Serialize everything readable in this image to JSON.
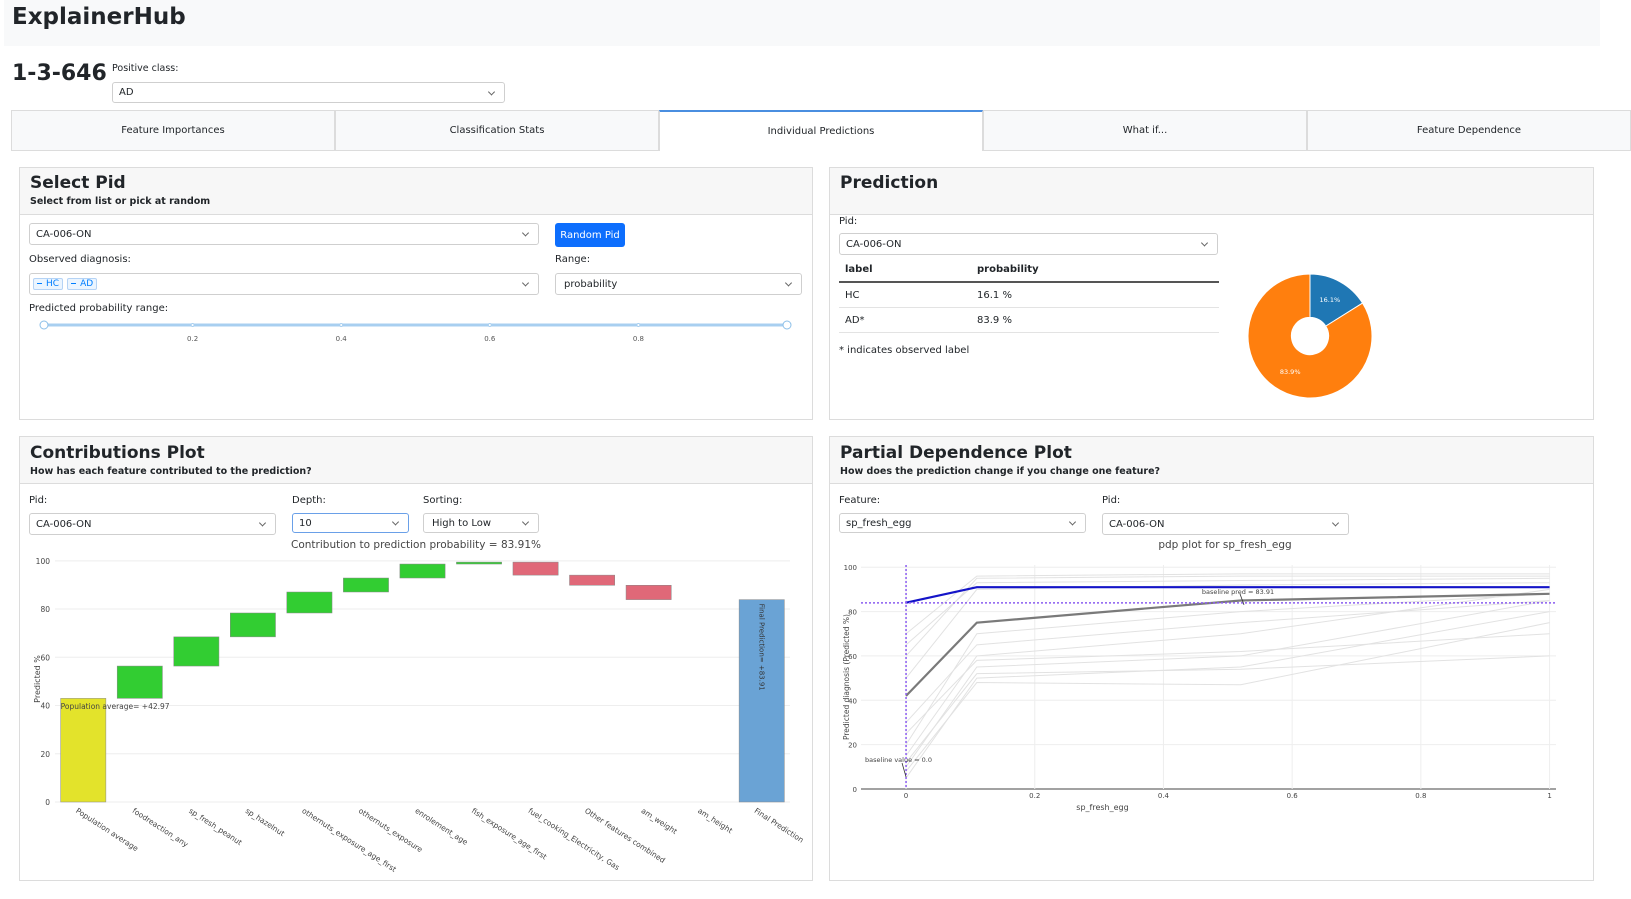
{
  "header": {
    "title": "ExplainerHub"
  },
  "page": {
    "title": "1-3-646",
    "positive_class_label": "Positive class:",
    "positive_class": "AD"
  },
  "tabs": {
    "items": [
      "Feature Importances",
      "Classification Stats",
      "Individual Predictions",
      "What if...",
      "Feature Dependence"
    ],
    "active": 2
  },
  "select_pid": {
    "title": "Select Pid",
    "subtitle": "Select from list or pick at random",
    "pid": "CA-006-ON",
    "button": "Random Pid",
    "observed_label": "Observed diagnosis:",
    "observed_tags": [
      "HC",
      "AD"
    ],
    "range_label": "Range:",
    "range": "probability",
    "slider_label": "Predicted probability range:",
    "slider": {
      "xlim": [
        0,
        1
      ],
      "xticks": [
        0.2,
        0.4,
        0.6,
        0.8
      ]
    }
  },
  "prediction": {
    "title": "Prediction",
    "pid_label": "Pid:",
    "pid": "CA-006-ON",
    "table": {
      "columns": [
        "label",
        "probability"
      ],
      "rows": [
        [
          "HC",
          "16.1 %"
        ],
        [
          "AD*",
          "83.9 %"
        ]
      ]
    },
    "note": "* indicates observed label"
  },
  "contributions": {
    "title": "Contributions Plot",
    "subtitle": "How has each feature contributed to the prediction?",
    "pid_label": "Pid:",
    "pid": "CA-006-ON",
    "depth_label": "Depth:",
    "depth": "10",
    "sorting_label": "Sorting:",
    "sorting": "High to Low"
  },
  "pdp": {
    "title": "Partial Dependence Plot",
    "subtitle": "How does the prediction change if you change one feature?",
    "feature_label": "Feature:",
    "feature": "sp_fresh_egg",
    "pid_label": "Pid:",
    "pid": "CA-006-ON"
  },
  "chart_data": [
    {
      "type": "pie",
      "categories": [
        "HC",
        "AD"
      ],
      "values": [
        16.1,
        83.9
      ],
      "value_labels": [
        "16.1%",
        "83.9%"
      ],
      "colors": [
        "#1f77b4",
        "#ff7f0e"
      ],
      "hole": 0.3
    },
    {
      "type": "waterfall",
      "title": "Contribution to prediction probability = 83.91%",
      "categories": [
        "Population average",
        "foodreaction_any",
        "sp_fresh_peanut",
        "sp_hazelnut",
        "othernuts_exposure_age_first",
        "othernuts_exposure",
        "enrolement_age",
        "fish_exposure_age_first",
        "fuel_cooking_Electricity, Gas",
        "Other features combined",
        "am_weight",
        "am_height",
        "Final Prediction"
      ],
      "values": [
        42.97,
        13.4,
        12.1,
        9.9,
        8.7,
        5.8,
        5.8,
        0.8,
        -5.4,
        -4.2,
        -5.96,
        null,
        83.91
      ],
      "value_labels": [
        "Population average= +42.97",
        null,
        null,
        null,
        null,
        null,
        null,
        null,
        null,
        null,
        null,
        null,
        "Final Prediction= +83.91"
      ],
      "ylabel": "Predicted %",
      "ylim": [
        0,
        102
      ],
      "yticks": [
        0,
        20,
        40,
        60,
        80,
        100
      ],
      "colors": {
        "base": "#e3e32b",
        "increase": "#32cd32",
        "decrease": "#e06878",
        "total": "#6aa3d5"
      }
    },
    {
      "type": "line",
      "title": "pdp plot for sp_fresh_egg",
      "xlabel": "sp_fresh_egg",
      "ylabel": "Predicted diagnosis (Predicted %)",
      "x": [
        0,
        0.11,
        0.52,
        1
      ],
      "xlim": [
        -0.07,
        1.01
      ],
      "xticks": [
        0,
        0.2,
        0.4,
        0.6,
        0.8,
        1
      ],
      "ylim": [
        0,
        101
      ],
      "yticks": [
        0,
        20,
        40,
        60,
        80,
        100
      ],
      "series": [
        {
          "color": "#e2e2e2",
          "values": [
            5,
            50,
            55,
            80
          ]
        },
        {
          "color": "#e2e2e2",
          "values": [
            10,
            55,
            60,
            85
          ]
        },
        {
          "color": "#e2e2e2",
          "values": [
            15,
            60,
            70,
            90
          ]
        },
        {
          "color": "#e2e2e2",
          "values": [
            20,
            70,
            80,
            88
          ]
        },
        {
          "color": "#e2e2e2",
          "values": [
            60,
            95,
            96,
            96
          ]
        },
        {
          "color": "#e2e2e2",
          "values": [
            70,
            96,
            97,
            97
          ]
        },
        {
          "color": "#e2e2e2",
          "values": [
            30,
            65,
            75,
            85
          ]
        },
        {
          "color": "#e2e2e2",
          "values": [
            8,
            48,
            47,
            75
          ]
        },
        {
          "color": "#e2e2e2",
          "values": [
            50,
            90,
            92,
            93
          ]
        },
        {
          "color": "#e2e2e2",
          "values": [
            25,
            58,
            62,
            70
          ]
        },
        {
          "color": "#e2e2e2",
          "values": [
            12,
            52,
            54,
            60
          ]
        },
        {
          "color": "#e2e2e2",
          "values": [
            65,
            93,
            94,
            95
          ]
        },
        {
          "color": "#7a7a7a",
          "values": [
            42,
            75,
            85,
            88
          ]
        },
        {
          "color": "#1414c8",
          "values": [
            84,
            91,
            91,
            91
          ]
        }
      ],
      "annotations": [
        {
          "axis": "y",
          "value": 83.91,
          "label": "baseline pred = 83.91"
        },
        {
          "axis": "x",
          "value": 0,
          "label": "baseline value = 0.0"
        }
      ],
      "reference_color": "#8a5cf0"
    }
  ]
}
